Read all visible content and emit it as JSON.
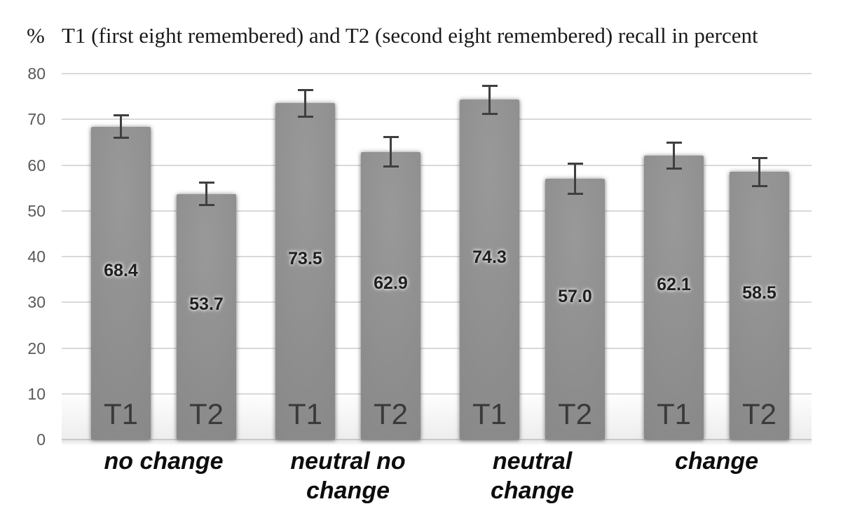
{
  "figure": {
    "percent_symbol": "%",
    "title": "T1 (first eight remembered) and T2 (second eight remembered) recall in percent"
  },
  "chart_data": {
    "type": "bar",
    "title": "% T1 (first eight remembered) and T2 (second eight remembered) recall in percent",
    "xlabel": "",
    "ylabel": "%",
    "ylim": [
      0,
      80
    ],
    "yticks": [
      0,
      10,
      20,
      30,
      40,
      50,
      60,
      70,
      80
    ],
    "grid": true,
    "legend_position": "none",
    "categories": [
      "no change",
      "neutral no change",
      "neutral change",
      "change"
    ],
    "category_label_lines": [
      [
        "no change"
      ],
      [
        "neutral no",
        "change"
      ],
      [
        "neutral",
        "change"
      ],
      [
        "change"
      ]
    ],
    "series": [
      {
        "name": "T1",
        "values": [
          68.4,
          73.5,
          74.3,
          62.1
        ],
        "errors": [
          2.7,
          3.1,
          3.3,
          3.1
        ]
      },
      {
        "name": "T2",
        "values": [
          53.7,
          62.9,
          57.0,
          58.5
        ],
        "errors": [
          2.7,
          3.4,
          3.5,
          3.3
        ]
      }
    ],
    "bar_value_labels_inside": true,
    "series_name_labels_inside_bar_bottom": true,
    "colors": {
      "bar": "#8d8d8d",
      "bar_light": "#999999",
      "bar_dark": "#858585",
      "error_bar": "#3f3f3f",
      "grid_line": "#d9d9d9",
      "axis_line": "#c8c8c8",
      "tick_label": "#595959",
      "value_label": "#1f1f1f",
      "series_label": "#3a3a3a",
      "category_label": "#0d0d0d",
      "background": "#ffffff"
    }
  }
}
